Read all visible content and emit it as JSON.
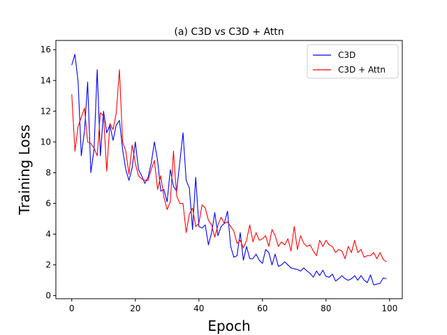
{
  "chart_data": {
    "type": "line",
    "title": "(a) C3D vs C3D + Attn",
    "xlabel": "Epoch",
    "ylabel": "Training Loss",
    "xlim": [
      -5,
      104
    ],
    "ylim": [
      -0.2,
      16.6
    ],
    "xticks": [
      0,
      20,
      40,
      60,
      80,
      100
    ],
    "yticks": [
      0,
      2,
      4,
      6,
      8,
      10,
      12,
      14,
      16
    ],
    "grid": false,
    "legend_position": "top-right",
    "series": [
      {
        "name": "C3D",
        "color": "#0000ff",
        "x": [
          0,
          1,
          2,
          3,
          4,
          5,
          6,
          7,
          8,
          9,
          10,
          11,
          12,
          13,
          14,
          15,
          16,
          17,
          18,
          19,
          20,
          21,
          22,
          23,
          24,
          25,
          26,
          27,
          28,
          29,
          30,
          31,
          32,
          33,
          34,
          35,
          36,
          37,
          38,
          39,
          40,
          41,
          42,
          43,
          44,
          45,
          46,
          47,
          48,
          49,
          50,
          51,
          52,
          53,
          54,
          55,
          56,
          57,
          58,
          59,
          60,
          61,
          62,
          63,
          64,
          65,
          66,
          67,
          68,
          69,
          70,
          71,
          72,
          73,
          74,
          75,
          76,
          77,
          78,
          79,
          80,
          81,
          82,
          83,
          84,
          85,
          86,
          87,
          88,
          89,
          90,
          91,
          92,
          93,
          94,
          95,
          96,
          97,
          98,
          99
        ],
        "y": [
          15.0,
          15.7,
          13.9,
          9.1,
          10.7,
          13.9,
          8.0,
          9.5,
          14.7,
          9.1,
          12.0,
          10.6,
          11.1,
          10.1,
          11.1,
          11.4,
          9.5,
          8.2,
          7.5,
          8.3,
          10.0,
          8.2,
          7.8,
          7.3,
          7.7,
          8.6,
          10.0,
          8.8,
          6.8,
          6.9,
          6.1,
          8.2,
          7.1,
          6.8,
          8.7,
          10.6,
          7.5,
          7.0,
          4.3,
          7.7,
          4.5,
          4.4,
          4.6,
          3.3,
          4.1,
          5.4,
          3.9,
          4.5,
          4.7,
          5.5,
          3.2,
          2.5,
          2.6,
          4.1,
          2.3,
          3.2,
          2.4,
          2.4,
          2.7,
          2.3,
          2.1,
          3.0,
          2.8,
          2.0,
          2.7,
          1.9,
          2.0,
          2.2,
          2.0,
          1.8,
          1.75,
          1.7,
          1.6,
          1.8,
          1.6,
          1.45,
          1.2,
          1.6,
          1.3,
          1.65,
          1.25,
          1.2,
          1.4,
          0.95,
          1.1,
          1.3,
          1.1,
          1.0,
          1.1,
          1.3,
          1.0,
          1.3,
          1.0,
          0.85,
          1.35,
          0.7,
          0.75,
          0.8,
          1.15,
          1.1
        ]
      },
      {
        "name": "C3D + Attn",
        "color": "#ff0000",
        "x": [
          0,
          1,
          2,
          3,
          4,
          5,
          6,
          7,
          8,
          9,
          10,
          11,
          12,
          13,
          14,
          15,
          16,
          17,
          18,
          19,
          20,
          21,
          22,
          23,
          24,
          25,
          26,
          27,
          28,
          29,
          30,
          31,
          32,
          33,
          34,
          35,
          36,
          37,
          38,
          39,
          40,
          41,
          42,
          43,
          44,
          45,
          46,
          47,
          48,
          49,
          50,
          51,
          52,
          53,
          54,
          55,
          56,
          57,
          58,
          59,
          60,
          61,
          62,
          63,
          64,
          65,
          66,
          67,
          68,
          69,
          70,
          71,
          72,
          73,
          74,
          75,
          76,
          77,
          78,
          79,
          80,
          81,
          82,
          83,
          84,
          85,
          86,
          87,
          88,
          89,
          90,
          91,
          92,
          93,
          94,
          95,
          96,
          97,
          98,
          99
        ],
        "y": [
          13.1,
          9.4,
          11.0,
          11.6,
          12.2,
          10.0,
          9.9,
          9.6,
          9.1,
          11.9,
          11.7,
          8.1,
          11.2,
          10.8,
          11.9,
          14.7,
          10.0,
          9.4,
          7.9,
          9.8,
          8.6,
          7.8,
          7.6,
          7.5,
          7.5,
          8.2,
          8.8,
          6.9,
          7.8,
          6.4,
          5.6,
          6.1,
          9.4,
          6.5,
          6.0,
          6.0,
          4.1,
          5.3,
          5.7,
          4.5,
          4.7,
          5.9,
          5.7,
          4.9,
          4.6,
          3.8,
          4.6,
          5.1,
          4.7,
          4.8,
          4.5,
          4.2,
          3.4,
          3.6,
          3.1,
          3.6,
          4.6,
          3.5,
          4.1,
          3.6,
          3.7,
          3.9,
          3.2,
          4.3,
          3.9,
          3.2,
          3.5,
          3.3,
          3.7,
          2.9,
          4.5,
          3.0,
          3.9,
          3.4,
          3.2,
          3.3,
          2.9,
          2.6,
          3.6,
          3.2,
          3.6,
          3.3,
          3.2,
          2.8,
          3.0,
          2.9,
          2.4,
          3.2,
          2.8,
          3.6,
          2.8,
          3.0,
          2.5,
          2.6,
          2.6,
          2.8,
          2.4,
          2.8,
          2.35,
          2.2
        ]
      }
    ]
  }
}
